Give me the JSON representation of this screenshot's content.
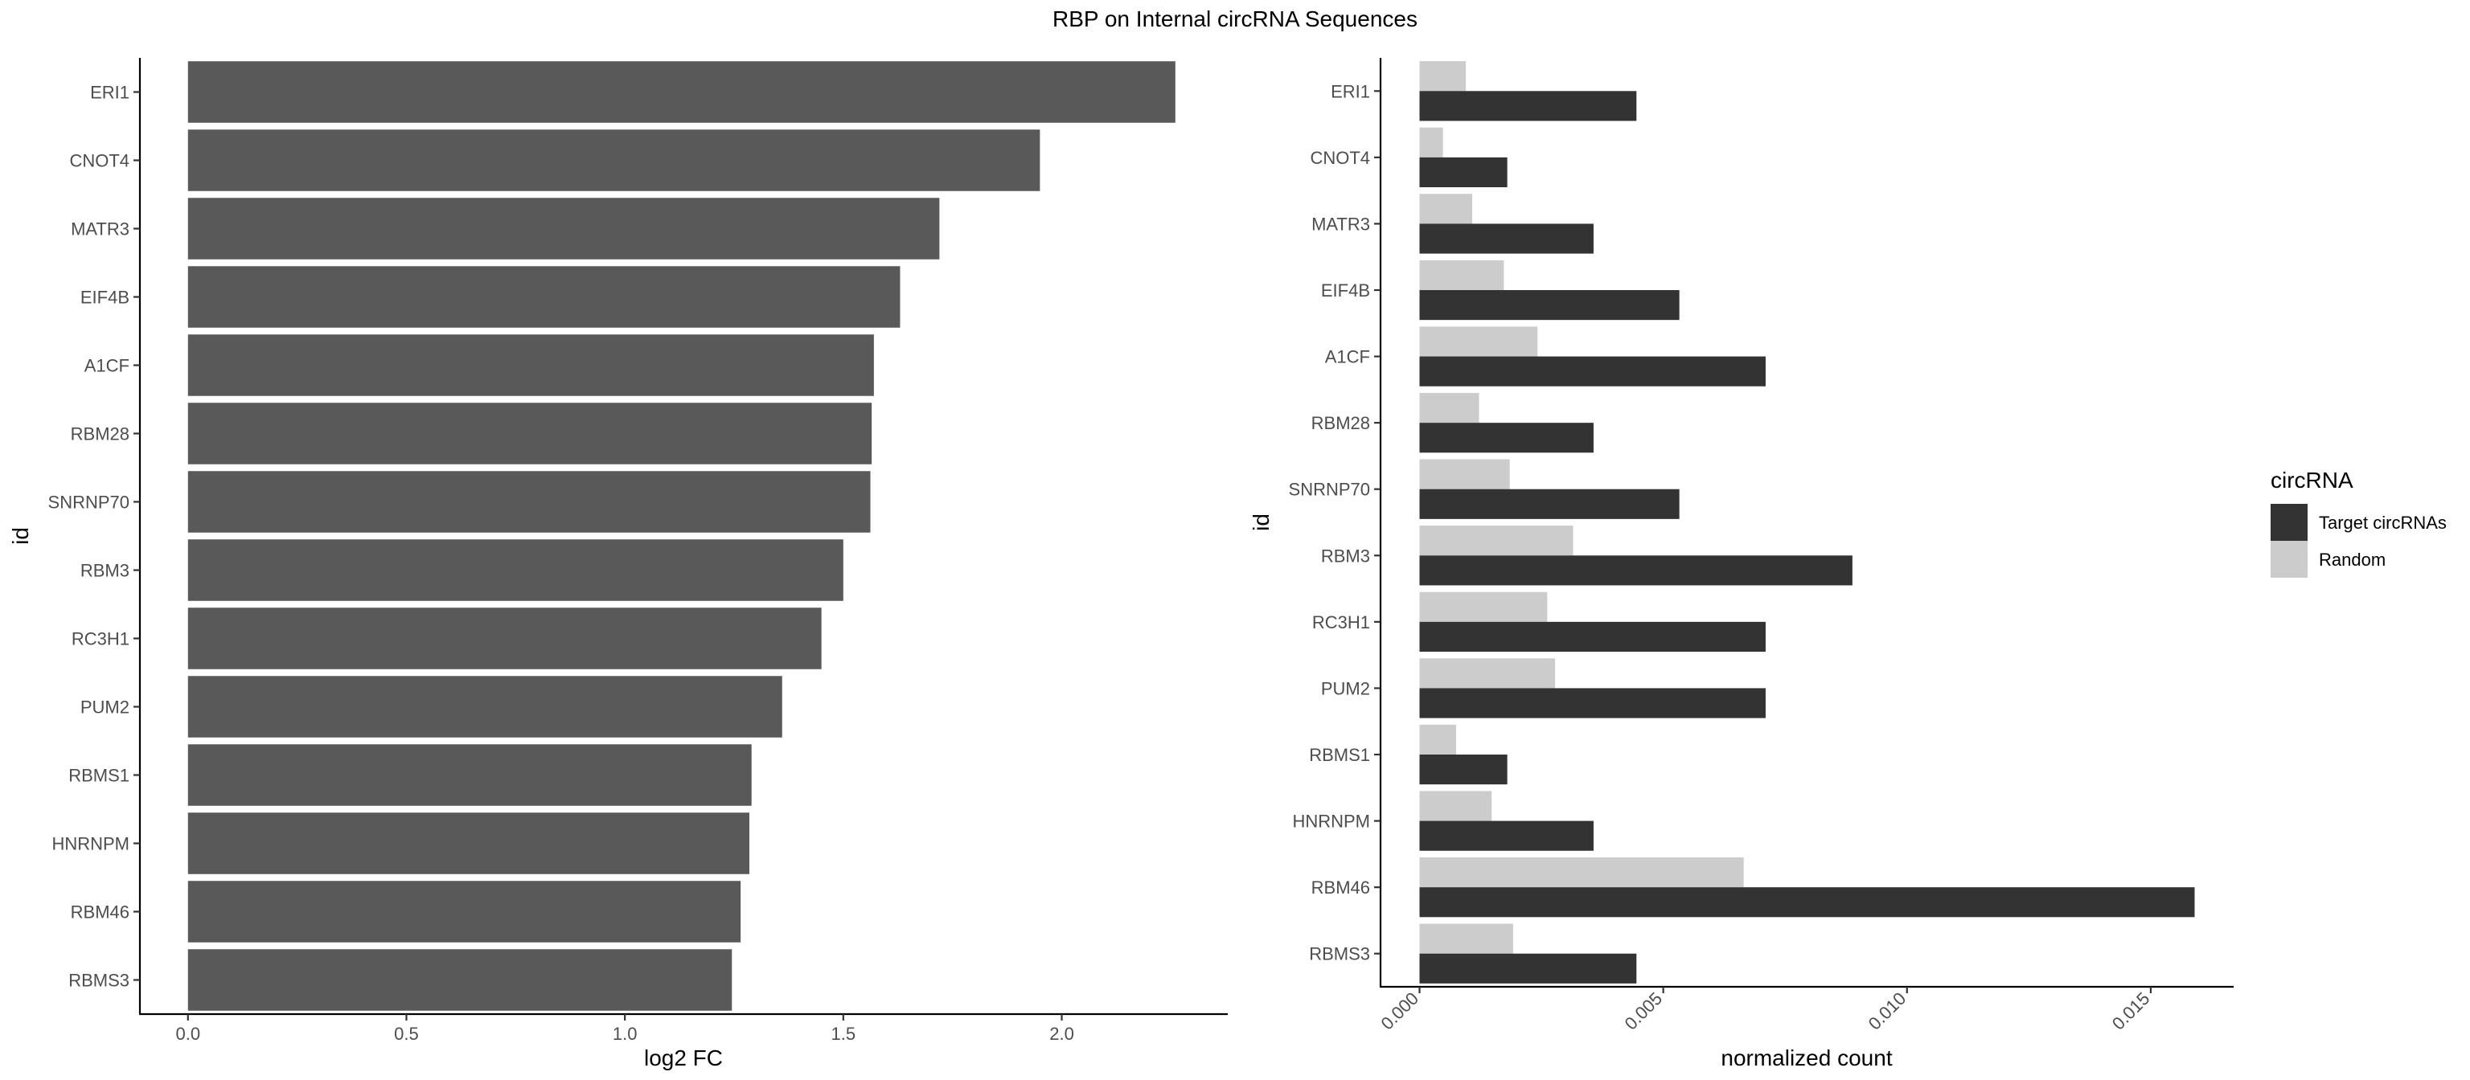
{
  "figure_title": "RBP on Internal circRNA Sequences",
  "chart_data": [
    {
      "type": "bar",
      "orientation": "horizontal",
      "categories": [
        "ERI1",
        "CNOT4",
        "MATR3",
        "EIF4B",
        "A1CF",
        "RBM28",
        "SNRNP70",
        "RBM3",
        "RC3H1",
        "PUM2",
        "RBMS1",
        "HNRNPM",
        "RBM46",
        "RBMS3"
      ],
      "values": [
        2.26,
        1.95,
        1.72,
        1.63,
        1.57,
        1.565,
        1.562,
        1.5,
        1.45,
        1.36,
        1.29,
        1.285,
        1.265,
        1.245
      ],
      "xlabel": "log2 FC",
      "ylabel": "id",
      "xlim": [
        -0.11,
        2.38
      ],
      "xticks": [
        "0.0",
        "0.5",
        "1.0",
        "1.5",
        "2.0"
      ],
      "bar_color": "#595959",
      "grid": false
    },
    {
      "type": "bar",
      "orientation": "horizontal",
      "categories": [
        "ERI1",
        "CNOT4",
        "MATR3",
        "EIF4B",
        "A1CF",
        "RBM28",
        "SNRNP70",
        "RBM3",
        "RC3H1",
        "PUM2",
        "RBMS1",
        "HNRNPM",
        "RBM46",
        "RBMS3"
      ],
      "series": [
        {
          "name": "Target circRNAs",
          "color": "#333333",
          "values": [
            0.00445,
            0.0018,
            0.00357,
            0.00533,
            0.0071,
            0.00357,
            0.00533,
            0.00888,
            0.0071,
            0.0071,
            0.0018,
            0.00357,
            0.0159,
            0.00445
          ]
        },
        {
          "name": "Random",
          "color": "#cccccc",
          "values": [
            0.00095,
            0.00048,
            0.00108,
            0.00173,
            0.00242,
            0.00122,
            0.00185,
            0.00315,
            0.00262,
            0.00278,
            0.00075,
            0.00148,
            0.00665,
            0.00192
          ]
        }
      ],
      "xlabel": "normalized count",
      "ylabel": "id",
      "xlim": [
        -0.0008,
        0.0167
      ],
      "xticks": [
        "0.000",
        "0.005",
        "0.010",
        "0.015"
      ],
      "legend": {
        "title": "circRNA",
        "position": "right"
      },
      "grid": false
    }
  ]
}
